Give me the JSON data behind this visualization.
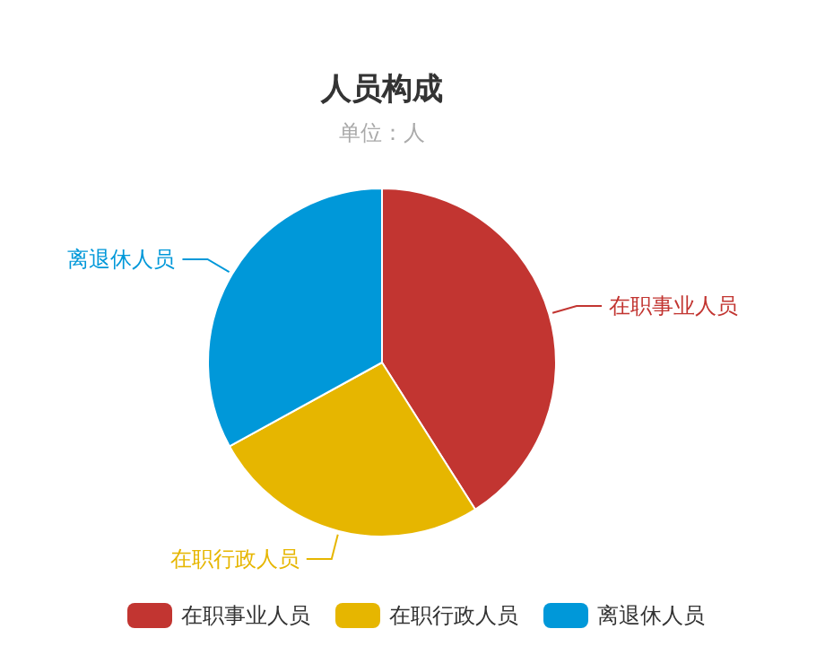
{
  "chart_data": {
    "type": "pie",
    "title": "人员构成",
    "subtitle": "单位：人",
    "categories": [
      "在职事业人员",
      "在职行政人员",
      "离退休人员"
    ],
    "values": [
      41,
      26,
      33
    ],
    "colors": [
      "#c23531",
      "#e6b600",
      "#0098d9"
    ],
    "legend": "bottom"
  }
}
